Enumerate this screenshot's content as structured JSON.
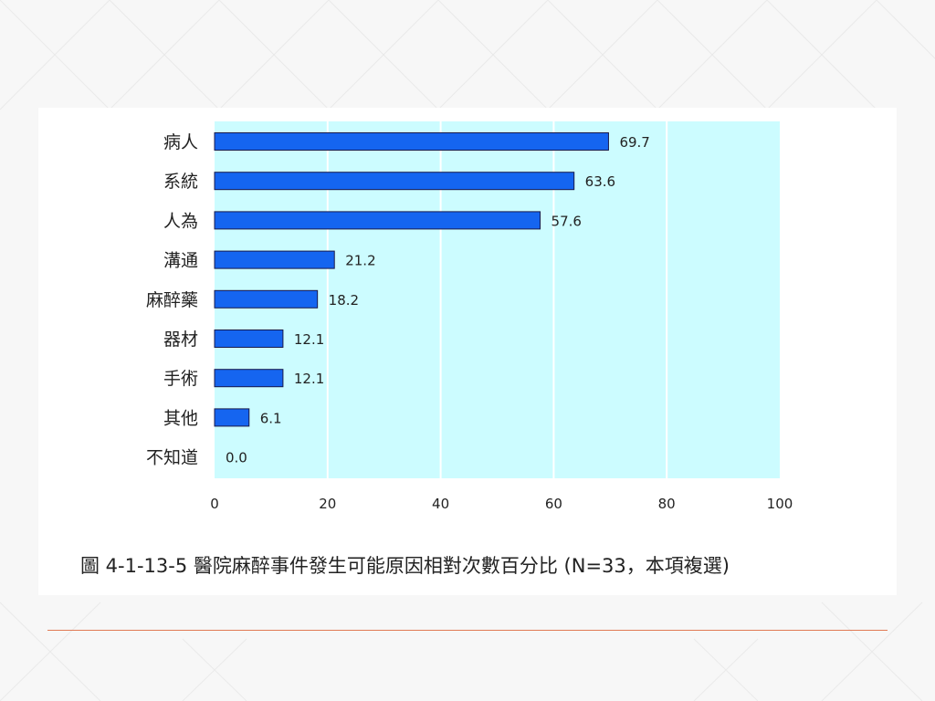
{
  "chart_data": {
    "type": "bar",
    "orientation": "horizontal",
    "categories": [
      "病人",
      "系統",
      "人為",
      "溝通",
      "麻醉藥",
      "器材",
      "手術",
      "其他",
      "不知道"
    ],
    "values": [
      69.7,
      63.6,
      57.6,
      21.2,
      18.2,
      12.1,
      12.1,
      6.1,
      0.0
    ],
    "value_labels": [
      "69.7",
      "63.6",
      "57.6",
      "21.2",
      "18.2",
      "12.1",
      "12.1",
      "6.1",
      "0.0"
    ],
    "xlim": [
      0,
      100
    ],
    "xticks": [
      0,
      20,
      40,
      60,
      80,
      100
    ],
    "grid": true,
    "colors": {
      "bar": "#1565f0",
      "bar_edge": "#1a1a4a",
      "plot_bg": "#ccfcff",
      "grid": "#ffffff"
    }
  },
  "caption": "圖  4-1-13-5  醫院麻醉事件發生可能原因相對次數百分比  (N=33，本項複選)",
  "theme": {
    "divider_color": "#e07a55"
  }
}
